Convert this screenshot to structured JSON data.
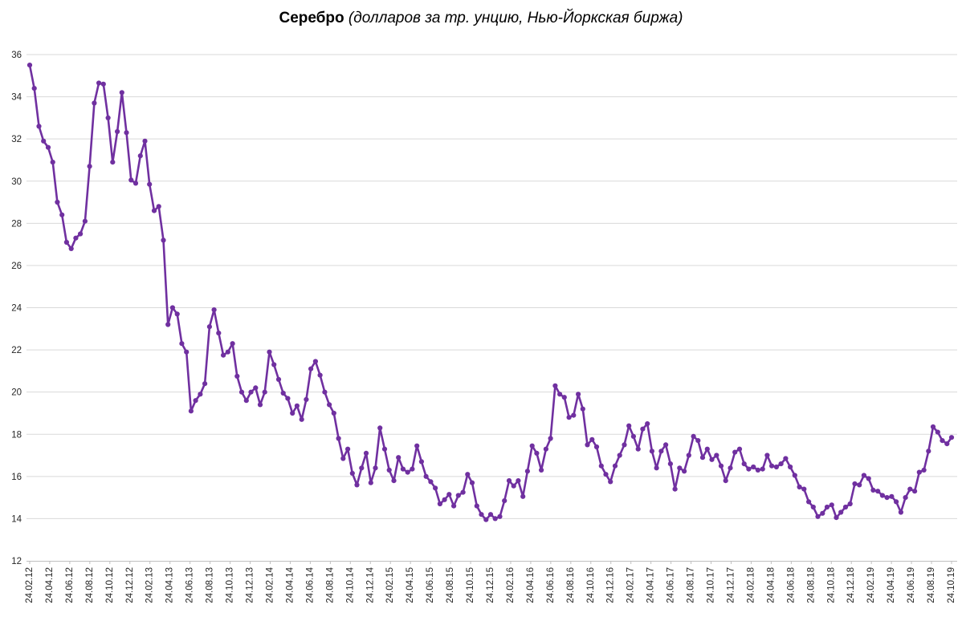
{
  "title": {
    "main": "Серебро",
    "subtitle": " (долларов за тр. унцию, Нью-Йоркская биржа)"
  },
  "chart_data": {
    "type": "line",
    "title": "Серебро (долларов за тр. унцию, Нью-Йоркская биржа)",
    "series_name": "Серебро, долларов за тройскую унцию",
    "x_range": [
      "24.02.12",
      "24.10.19"
    ],
    "x_tick_labels": [
      "24.02.12",
      "24.04.12",
      "24.06.12",
      "24.08.12",
      "24.10.12",
      "24.12.12",
      "24.02.13",
      "24.04.13",
      "24.06.13",
      "24.08.13",
      "24.10.13",
      "24.12.13",
      "24.02.14",
      "24.04.14",
      "24.06.14",
      "24.08.14",
      "24.10.14",
      "24.12.14",
      "24.02.15",
      "24.04.15",
      "24.06.15",
      "24.08.15",
      "24.10.15",
      "24.12.15",
      "24.02.16",
      "24.04.16",
      "24.06.16",
      "24.08.16",
      "24.10.16",
      "24.12.16",
      "24.02.17",
      "24.04.17",
      "24.06.17",
      "24.08.17",
      "24.10.17",
      "24.12.17",
      "24.02.18",
      "24.04.18",
      "24.06.18",
      "24.08.18",
      "24.10.18",
      "24.12.18",
      "24.02.19",
      "24.04.19",
      "24.06.19",
      "24.08.19",
      "24.10.19"
    ],
    "y_ticks": [
      36,
      34,
      32,
      30,
      28,
      26,
      24,
      22,
      20,
      18,
      16,
      14,
      12
    ],
    "ylim": [
      12,
      36
    ],
    "grid": "horizontal",
    "legend": "none",
    "values": [
      35.5,
      34.4,
      32.6,
      31.9,
      31.6,
      30.9,
      29.0,
      28.4,
      27.1,
      26.8,
      27.3,
      27.5,
      28.1,
      30.7,
      33.7,
      34.65,
      34.6,
      33.0,
      30.9,
      32.35,
      34.2,
      32.3,
      30.05,
      29.9,
      31.2,
      31.9,
      29.85,
      28.6,
      28.8,
      27.2,
      23.2,
      24.0,
      23.7,
      22.3,
      21.9,
      19.1,
      19.6,
      19.9,
      20.4,
      23.1,
      23.9,
      22.8,
      21.75,
      21.9,
      22.3,
      20.75,
      20.0,
      19.6,
      20.0,
      20.2,
      19.4,
      20.0,
      21.9,
      21.3,
      20.6,
      19.95,
      19.7,
      19.0,
      19.35,
      18.7,
      19.65,
      21.1,
      21.45,
      20.8,
      20.0,
      19.4,
      19.0,
      17.8,
      16.85,
      17.3,
      16.15,
      15.6,
      16.4,
      17.1,
      15.7,
      16.4,
      18.3,
      17.3,
      16.3,
      15.8,
      16.9,
      16.35,
      16.2,
      16.35,
      17.45,
      16.7,
      16.0,
      15.75,
      15.45,
      14.7,
      14.9,
      15.15,
      14.6,
      15.1,
      15.25,
      16.1,
      15.7,
      14.6,
      14.2,
      13.95,
      14.2,
      14.0,
      14.1,
      14.85,
      15.8,
      15.55,
      15.8,
      15.05,
      16.25,
      17.45,
      17.1,
      16.3,
      17.3,
      17.8,
      20.3,
      19.9,
      19.75,
      18.8,
      18.9,
      19.9,
      19.2,
      17.5,
      17.75,
      17.4,
      16.5,
      16.1,
      15.75,
      16.5,
      17.0,
      17.5,
      18.4,
      17.9,
      17.3,
      18.25,
      18.5,
      17.2,
      16.4,
      17.2,
      17.5,
      16.6,
      15.4,
      16.4,
      16.25,
      17.0,
      17.9,
      17.7,
      16.9,
      17.3,
      16.8,
      17.0,
      16.5,
      15.8,
      16.4,
      17.15,
      17.3,
      16.6,
      16.35,
      16.45,
      16.3,
      16.35,
      17.0,
      16.5,
      16.45,
      16.6,
      16.85,
      16.45,
      16.05,
      15.5,
      15.4,
      14.8,
      14.55,
      14.1,
      14.25,
      14.55,
      14.65,
      14.05,
      14.3,
      14.55,
      14.7,
      15.65,
      15.6,
      16.05,
      15.9,
      15.35,
      15.3,
      15.1,
      15.0,
      15.05,
      14.8,
      14.3,
      15.0,
      15.4,
      15.3,
      16.2,
      16.3,
      17.2,
      18.35,
      18.1,
      17.7,
      17.55,
      17.85
    ],
    "colors": {
      "line": "#7030A0",
      "marker": "#7030A0",
      "gridline": "#D9D9D9",
      "axis": "#BFBFBF",
      "labels": "#262626",
      "background": "#FFFFFF"
    }
  }
}
